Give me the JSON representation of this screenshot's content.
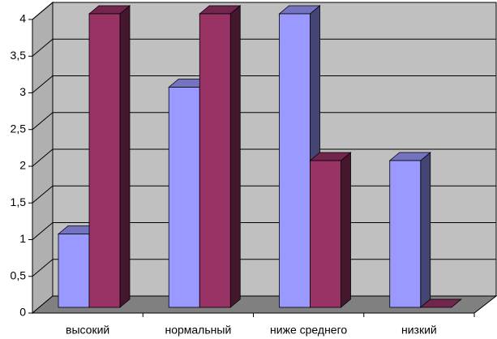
{
  "chart_data": {
    "type": "bar3d",
    "categories": [
      "высокий",
      "нормальный",
      "ниже среднего",
      "низкий"
    ],
    "series": [
      {
        "color": "#9999ff",
        "values": [
          1,
          3,
          4,
          2
        ]
      },
      {
        "color": "#993366",
        "values": [
          4,
          4,
          2,
          0
        ]
      }
    ],
    "ylim": [
      0,
      4
    ],
    "yticks": [
      0,
      {
        "value": 0.5,
        "label": "0,5"
      },
      1,
      {
        "value": 1.5,
        "label": "1,5"
      },
      2,
      {
        "value": 2.5,
        "label": "2,5"
      },
      3,
      {
        "value": 3.5,
        "label": "3,5"
      },
      4
    ],
    "grid": true
  }
}
